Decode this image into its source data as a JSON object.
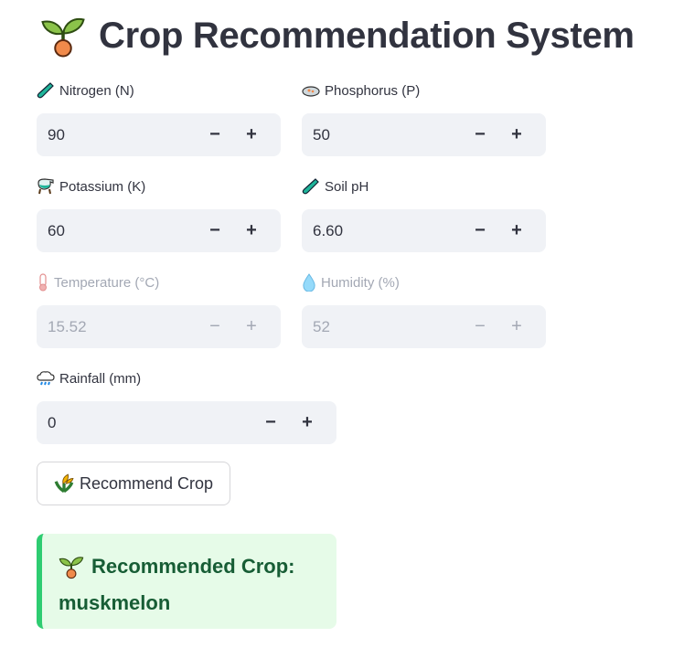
{
  "title": "Crop Recommendation System",
  "fields": [
    {
      "label": "Nitrogen (N)",
      "value": "90",
      "icon": "test-tube-icon",
      "disabled": false
    },
    {
      "label": "Phosphorus (P)",
      "value": "50",
      "icon": "petri-dish-icon",
      "disabled": false
    },
    {
      "label": "Potassium (K)",
      "value": "60",
      "icon": "alembic-icon",
      "disabled": false
    },
    {
      "label": "Soil pH",
      "value": "6.60",
      "icon": "test-tube-icon",
      "disabled": false
    },
    {
      "label": "Temperature (°C)",
      "value": "15.52",
      "icon": "thermometer-icon",
      "disabled": true
    },
    {
      "label": "Humidity (%)",
      "value": "52",
      "icon": "droplet-icon",
      "disabled": true
    },
    {
      "label": "Rainfall (mm)",
      "value": "0",
      "icon": "rain-cloud-icon",
      "disabled": false
    }
  ],
  "stepper": {
    "minus": "−",
    "plus": "+"
  },
  "button": {
    "label": "Recommend Crop",
    "icon": "sheaf-of-rice-icon"
  },
  "result": {
    "text": "Recommended Crop:",
    "crop": "muskmelon",
    "icon": "seedling-icon",
    "color": "#2ecc71"
  }
}
